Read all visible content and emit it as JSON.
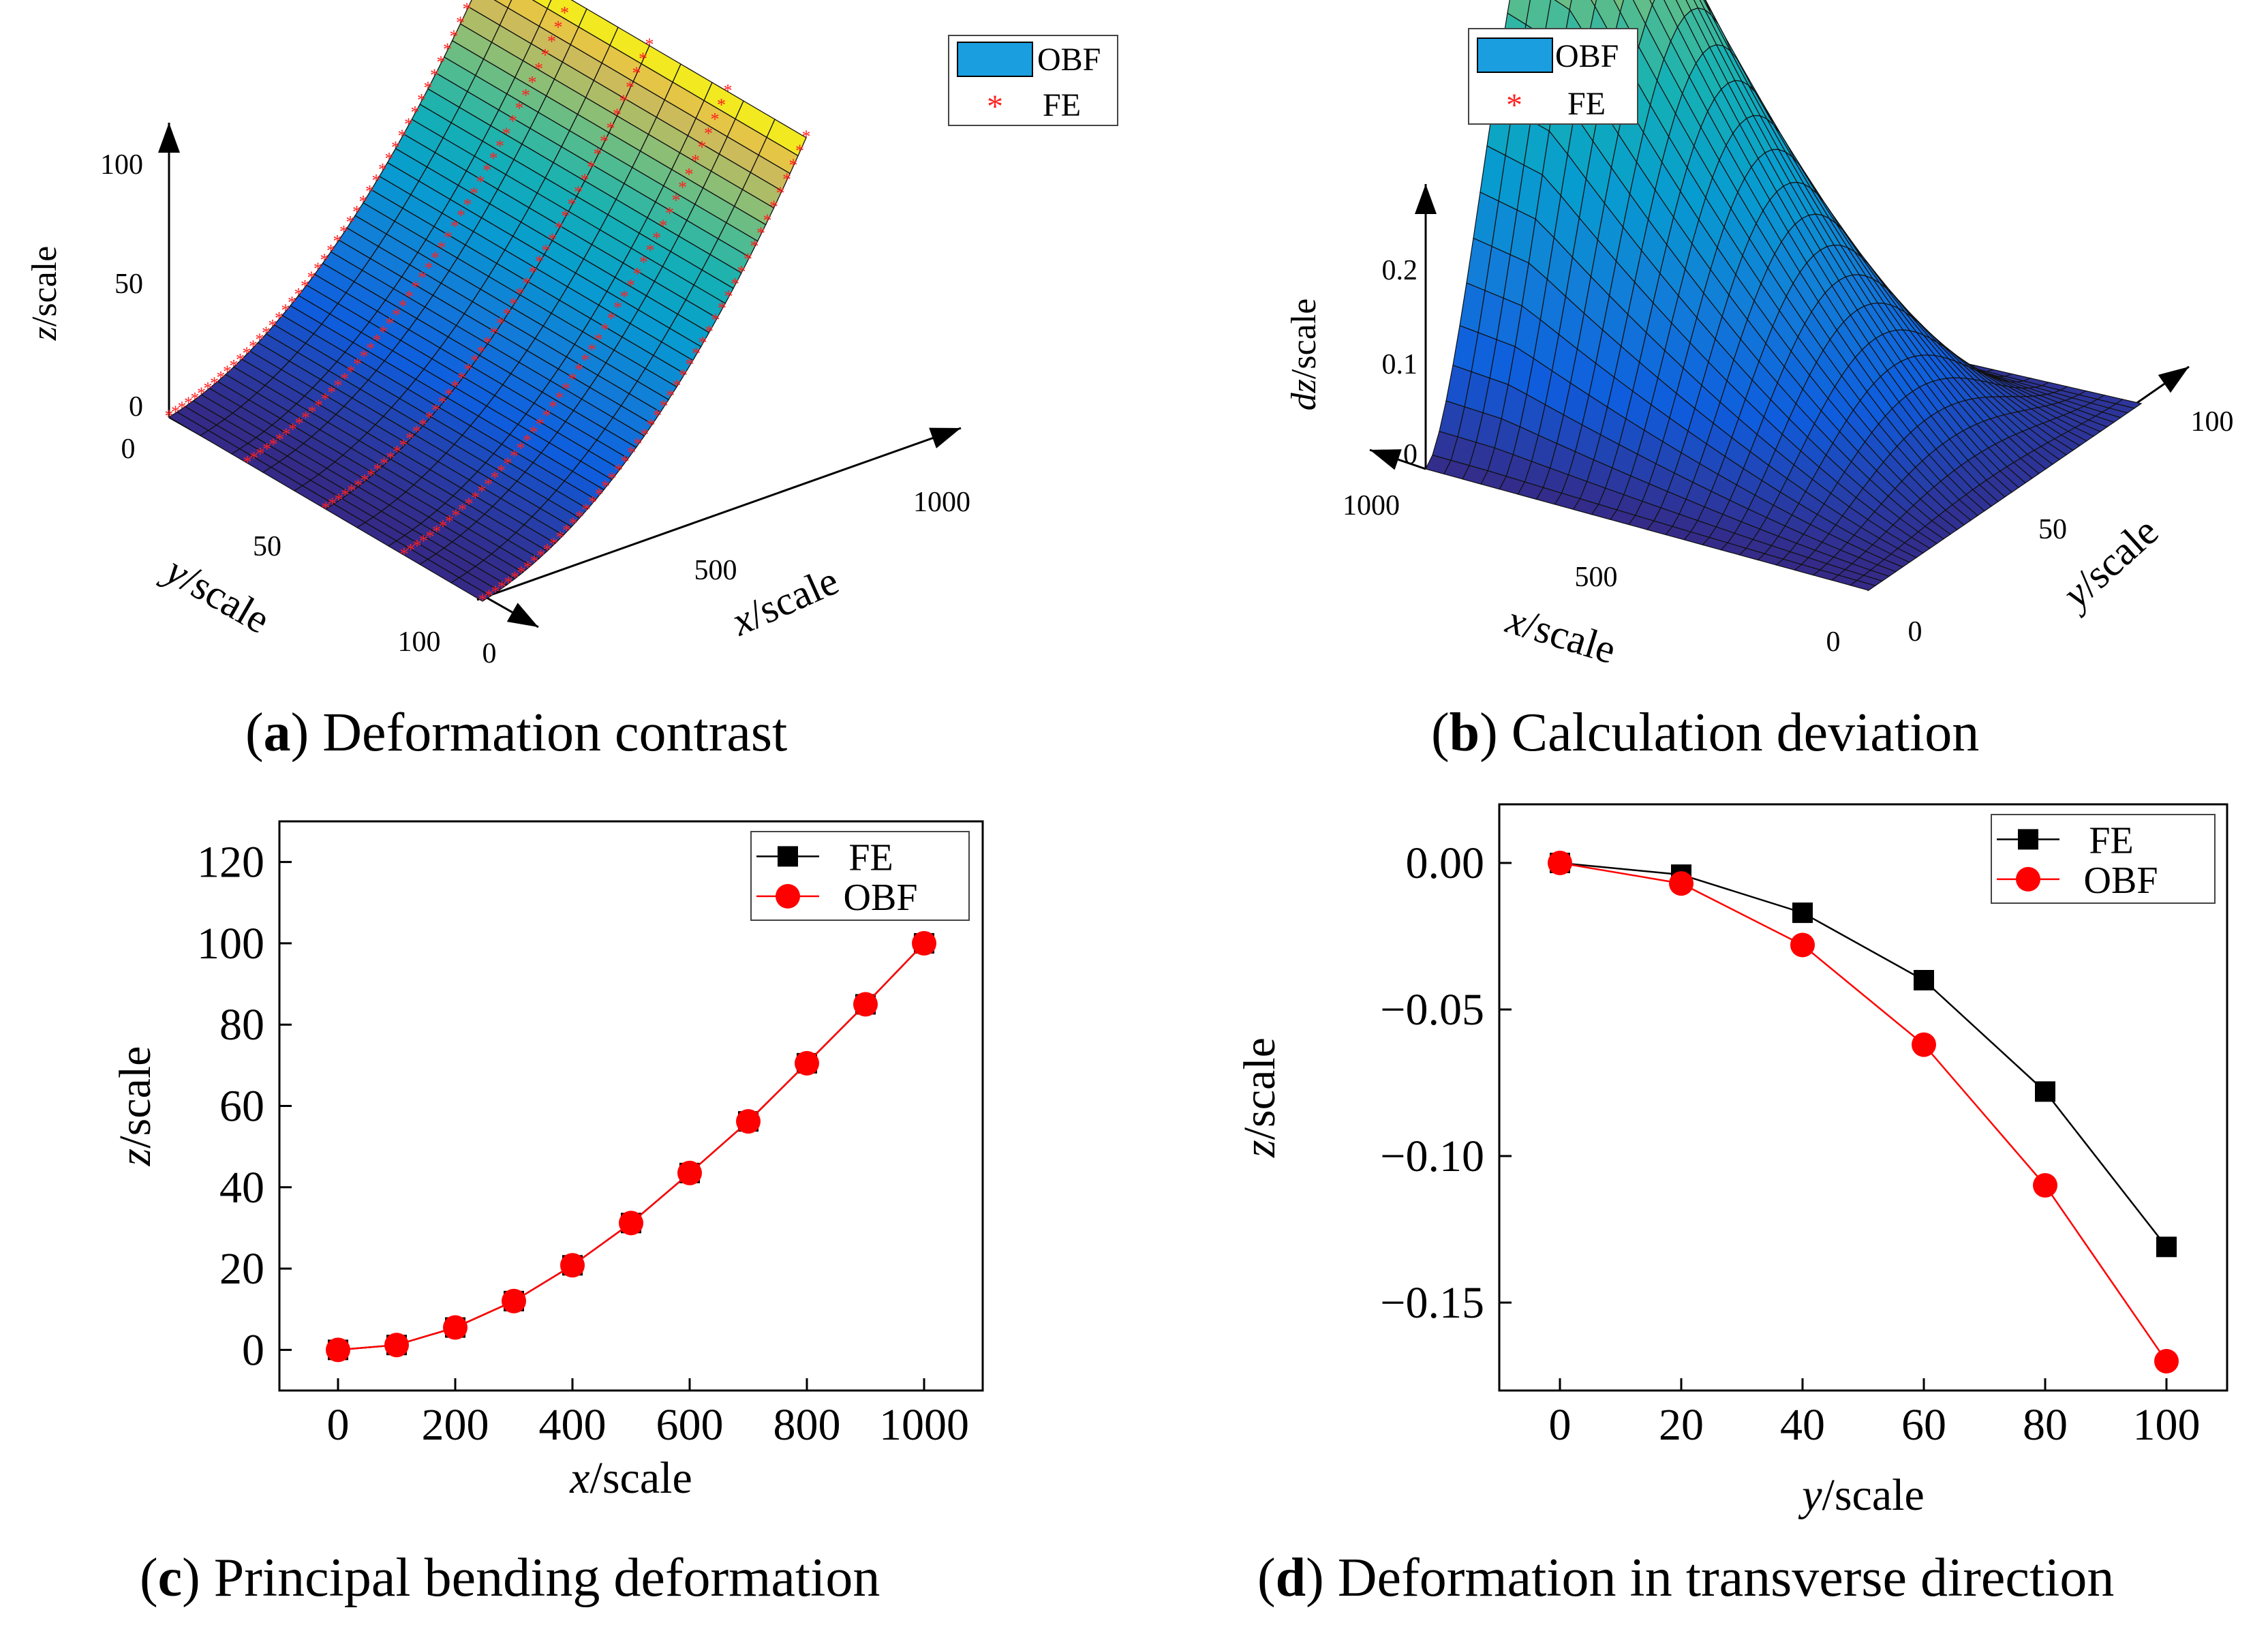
{
  "captions": {
    "a": {
      "letter": "a",
      "text": " Deformation contrast"
    },
    "b": {
      "letter": "b",
      "text": " Calculation deviation"
    },
    "c": {
      "letter": "c",
      "text": " Principal bending deformation"
    },
    "d": {
      "letter": "d",
      "text": " Deformation in transverse direction"
    }
  },
  "colors": {
    "fe": "#000000",
    "obf": "#ff0000",
    "obf_legend_fill": "#1a9ee0",
    "fe_star": "#ff2020"
  },
  "chart_data": [
    {
      "panel": "a",
      "type": "surface3d",
      "title": "Deformation contrast",
      "xlabel": "x/scale",
      "ylabel": "y/scale",
      "zlabel": "z/scale",
      "x_ticks": [
        "0",
        "500",
        "1000"
      ],
      "y_ticks": [
        "0",
        "50",
        "100"
      ],
      "z_ticks": [
        "0",
        "50",
        "100"
      ],
      "xlim": [
        0,
        1000
      ],
      "ylim": [
        0,
        100
      ],
      "zlim": [
        0,
        100
      ],
      "legend": [
        "OBF",
        "FE"
      ],
      "legend_position": "top-right",
      "colormap": "parula",
      "series": [
        {
          "name": "OBF",
          "kind": "surface",
          "z_function": "100*(x/1000)^2"
        },
        {
          "name": "FE",
          "kind": "markers",
          "y_lines": [
            0,
            25,
            50,
            75,
            100
          ]
        }
      ]
    },
    {
      "panel": "b",
      "type": "surface3d",
      "title": "Calculation deviation",
      "xlabel": "x/scale",
      "ylabel": "y/scale",
      "zlabel": "dz/scale",
      "x_ticks": [
        "0",
        "500",
        "1000"
      ],
      "y_ticks": [
        "0",
        "50",
        "100"
      ],
      "z_ticks": [
        "0",
        "0.1",
        "0.2"
      ],
      "xlim": [
        0,
        1000
      ],
      "ylim": [
        0,
        100
      ],
      "zlim": [
        0,
        0.28
      ],
      "legend": [
        "OBF",
        "FE"
      ],
      "legend_position": "top-left",
      "colormap": "parula"
    },
    {
      "panel": "c",
      "type": "line",
      "title": "Principal bending deformation",
      "xlabel": "x/scale",
      "ylabel": "z/scale",
      "xlim": [
        -100,
        1100
      ],
      "ylim": [
        -10,
        130
      ],
      "x_ticks": [
        0,
        200,
        400,
        600,
        800,
        1000
      ],
      "y_ticks": [
        0,
        20,
        40,
        60,
        80,
        100,
        120
      ],
      "legend_position": "top-right",
      "x": [
        0,
        100,
        200,
        300,
        400,
        500,
        600,
        700,
        800,
        900,
        1000
      ],
      "series": [
        {
          "name": "FE",
          "marker": "square",
          "values": [
            0,
            1.2,
            5.5,
            12,
            20.8,
            31.2,
            43.5,
            56.2,
            70.5,
            85,
            100
          ]
        },
        {
          "name": "OBF",
          "marker": "circle",
          "values": [
            0,
            1.2,
            5.5,
            12,
            20.8,
            31.2,
            43.5,
            56.2,
            70.5,
            85,
            100
          ]
        }
      ]
    },
    {
      "panel": "d",
      "type": "line",
      "title": "Deformation in transverse direction",
      "xlabel": "y/scale",
      "ylabel": "z/scale",
      "xlim": [
        -10,
        110
      ],
      "ylim": [
        -0.18,
        0.02
      ],
      "x_ticks": [
        0,
        20,
        40,
        60,
        80,
        100
      ],
      "y_ticks": [
        0.0,
        -0.05,
        -0.1,
        -0.15
      ],
      "y_tick_labels": [
        "0.00",
        "−0.05",
        "−0.10",
        "−0.15"
      ],
      "legend_position": "top-right",
      "x": [
        0,
        20,
        40,
        60,
        80,
        100
      ],
      "series": [
        {
          "name": "FE",
          "marker": "square",
          "values": [
            0,
            -0.004,
            -0.017,
            -0.04,
            -0.078,
            -0.131
          ]
        },
        {
          "name": "OBF",
          "marker": "circle",
          "values": [
            0,
            -0.007,
            -0.028,
            -0.062,
            -0.11,
            -0.17
          ]
        }
      ]
    }
  ]
}
